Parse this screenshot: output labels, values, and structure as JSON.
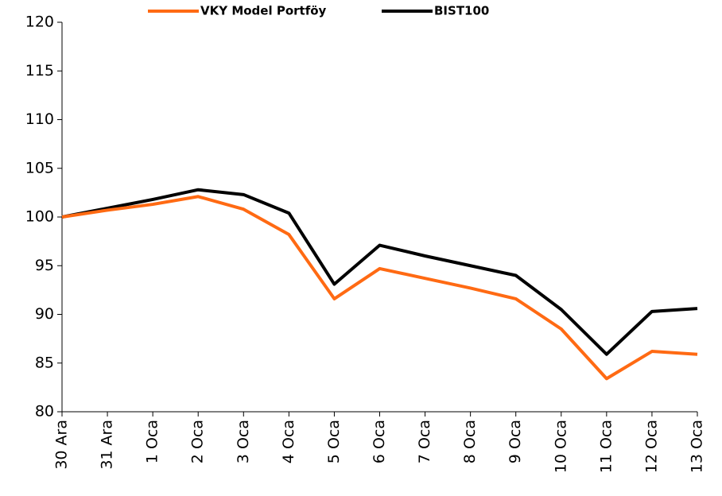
{
  "chart_data": {
    "type": "line",
    "categories": [
      "30 Ara",
      "31 Ara",
      "1 Oca",
      "2 Oca",
      "3 Oca",
      "4 Oca",
      "5 Oca",
      "6 Oca",
      "7 Oca",
      "8 Oca",
      "9 Oca",
      "10 Oca",
      "11 Oca",
      "12 Oca",
      "13 Oca"
    ],
    "series": [
      {
        "name": "VKY Model Portföy",
        "color": "#ff6a13",
        "values": [
          100,
          100.7,
          101.3,
          102.1,
          100.8,
          98.2,
          91.6,
          94.7,
          93.7,
          92.7,
          91.6,
          88.5,
          83.4,
          86.2,
          85.9
        ]
      },
      {
        "name": "BIST100",
        "color": "#000000",
        "values": [
          100,
          100.9,
          101.8,
          102.8,
          102.3,
          100.4,
          93.1,
          97.1,
          96.0,
          95.0,
          94.0,
          90.5,
          85.9,
          90.3,
          90.6
        ]
      }
    ],
    "ylim": [
      80,
      120
    ],
    "yticks": [
      80,
      85,
      90,
      95,
      100,
      105,
      110,
      115,
      120
    ]
  }
}
